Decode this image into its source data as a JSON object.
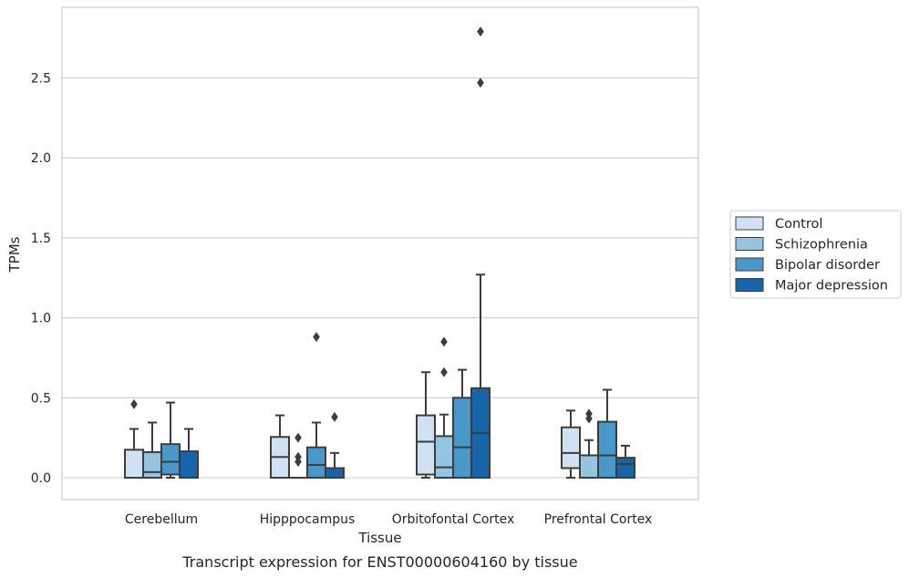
{
  "chart_data": {
    "type": "box",
    "caption": "Transcript expression for ENST00000604160 by tissue",
    "xlabel": "Tissue",
    "ylabel": "TPMs",
    "ylim": [
      -0.13,
      2.93
    ],
    "yticks": [
      0.0,
      0.5,
      1.0,
      1.5,
      2.0,
      2.5
    ],
    "ytick_labels": [
      "0.0",
      "0.5",
      "1.0",
      "1.5",
      "2.0",
      "2.5"
    ],
    "grid": "horizontal",
    "legend_position": "right",
    "categories": [
      "Cerebellum",
      "Hipppocampus",
      "Orbitofontal Cortex",
      "Prefrontal Cortex"
    ],
    "series": [
      {
        "name": "Control",
        "color": "#d0e1f2",
        "boxes": [
          {
            "whislo": 0.0,
            "q1": 0.0,
            "med": 0.0,
            "q3": 0.175,
            "whishi": 0.305,
            "fliers": [
              0.46
            ]
          },
          {
            "whislo": 0.0,
            "q1": 0.0,
            "med": 0.13,
            "q3": 0.255,
            "whishi": 0.39,
            "fliers": []
          },
          {
            "whislo": 0.0,
            "q1": 0.02,
            "med": 0.225,
            "q3": 0.39,
            "whishi": 0.66,
            "fliers": []
          },
          {
            "whislo": 0.0,
            "q1": 0.06,
            "med": 0.155,
            "q3": 0.315,
            "whishi": 0.42,
            "fliers": []
          }
        ]
      },
      {
        "name": "Schizophrenia",
        "color": "#94c4df",
        "boxes": [
          {
            "whislo": 0.0,
            "q1": 0.0,
            "med": 0.035,
            "q3": 0.16,
            "whishi": 0.345,
            "fliers": []
          },
          {
            "whislo": 0.0,
            "q1": 0.0,
            "med": 0.0,
            "q3": 0.0,
            "whishi": 0.0,
            "fliers": [
              0.1,
              0.13,
              0.25
            ]
          },
          {
            "whislo": 0.0,
            "q1": 0.0,
            "med": 0.065,
            "q3": 0.26,
            "whishi": 0.395,
            "fliers": [
              0.66,
              0.85
            ]
          },
          {
            "whislo": 0.0,
            "q1": 0.0,
            "med": 0.0,
            "q3": 0.14,
            "whishi": 0.235,
            "fliers": [
              0.37,
              0.4
            ]
          }
        ]
      },
      {
        "name": "Bipolar disorder",
        "color": "#4a98c9",
        "boxes": [
          {
            "whislo": 0.0,
            "q1": 0.02,
            "med": 0.1,
            "q3": 0.21,
            "whishi": 0.47,
            "fliers": []
          },
          {
            "whislo": 0.0,
            "q1": 0.0,
            "med": 0.08,
            "q3": 0.19,
            "whishi": 0.345,
            "fliers": [
              0.88
            ]
          },
          {
            "whislo": 0.0,
            "q1": 0.0,
            "med": 0.19,
            "q3": 0.5,
            "whishi": 0.675,
            "fliers": []
          },
          {
            "whislo": 0.0,
            "q1": 0.0,
            "med": 0.14,
            "q3": 0.35,
            "whishi": 0.55,
            "fliers": []
          }
        ]
      },
      {
        "name": "Major depression",
        "color": "#1764ab",
        "boxes": [
          {
            "whislo": 0.0,
            "q1": 0.0,
            "med": 0.0,
            "q3": 0.165,
            "whishi": 0.305,
            "fliers": []
          },
          {
            "whislo": 0.0,
            "q1": 0.0,
            "med": 0.0,
            "q3": 0.06,
            "whishi": 0.155,
            "fliers": [
              0.38
            ]
          },
          {
            "whislo": 0.0,
            "q1": 0.0,
            "med": 0.28,
            "q3": 0.56,
            "whishi": 1.27,
            "fliers": [
              2.47,
              2.79
            ]
          },
          {
            "whislo": 0.0,
            "q1": 0.0,
            "med": 0.085,
            "q3": 0.125,
            "whishi": 0.2,
            "fliers": []
          }
        ]
      }
    ]
  }
}
